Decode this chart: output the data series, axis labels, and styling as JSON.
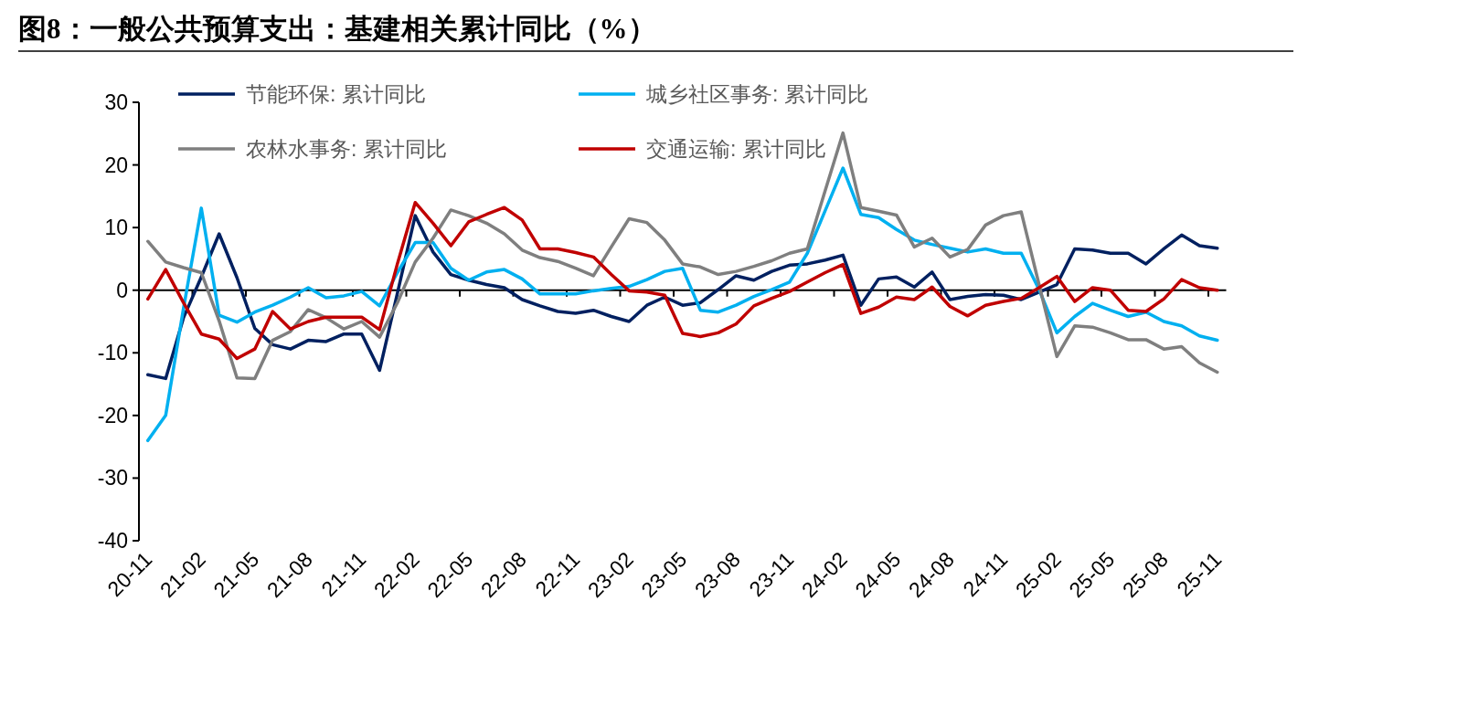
{
  "chart_data": {
    "type": "line",
    "title": "图8：一般公共预算支出：基建相关累计同比（%）",
    "categories": [
      "20-11",
      null,
      null,
      "21-02",
      null,
      null,
      "21-05",
      null,
      null,
      "21-08",
      null,
      null,
      "21-11",
      null,
      null,
      "22-02",
      null,
      null,
      "22-05",
      null,
      null,
      "22-08",
      null,
      null,
      "22-11",
      null,
      null,
      "23-02",
      null,
      null,
      "23-05",
      null,
      null,
      "23-08",
      null,
      null,
      "23-11",
      null,
      null,
      "24-02",
      null,
      null,
      "24-05",
      null,
      null,
      "24-08",
      null,
      null,
      "24-11",
      null,
      null,
      "25-02",
      null,
      null,
      "25-05",
      null,
      null,
      "25-08",
      null,
      null,
      "25-11"
    ],
    "series": [
      {
        "name": "节能环保: 累计同比",
        "color": "#002060",
        "values": [
          -13.5,
          -14.1,
          -4.4,
          2.1,
          9.0,
          2.0,
          -6.1,
          -8.7,
          -9.4,
          -8.0,
          -8.2,
          -7.0,
          -7.0,
          -12.8,
          -0.5,
          11.9,
          6.1,
          2.5,
          1.6,
          0.9,
          0.4,
          -1.5,
          -2.5,
          -3.4,
          -3.7,
          -3.2,
          -4.2,
          -5.0,
          -2.4,
          -1.1,
          -2.4,
          -2.0,
          0.1,
          2.3,
          1.6,
          3.0,
          4.0,
          4.2,
          4.8,
          5.6,
          -2.4,
          1.8,
          2.1,
          0.5,
          2.9,
          -1.5,
          -1.0,
          -0.7,
          -0.8,
          -1.5,
          -0.3,
          0.9,
          6.6,
          6.4,
          5.9,
          5.9,
          4.2,
          6.6,
          8.8,
          7.1,
          6.7
        ]
      },
      {
        "name": "城乡社区事务: 累计同比",
        "color": "#00b0f0",
        "values": [
          -24.0,
          -20.0,
          -2.9,
          13.1,
          -4.0,
          -5.1,
          -3.5,
          -2.4,
          -1.1,
          0.4,
          -1.2,
          -0.9,
          -0.2,
          -2.5,
          2.8,
          7.6,
          7.6,
          3.5,
          1.6,
          2.9,
          3.3,
          1.8,
          -0.6,
          -0.6,
          -0.6,
          -0.1,
          0.3,
          0.6,
          1.7,
          3.0,
          3.5,
          -3.2,
          -3.5,
          -2.4,
          -1.0,
          0.1,
          1.3,
          5.9,
          12.7,
          19.5,
          12.1,
          11.6,
          9.7,
          8.0,
          7.3,
          6.7,
          6.1,
          6.6,
          5.9,
          5.9,
          0.1,
          -6.8,
          -4.2,
          -2.1,
          -3.2,
          -4.2,
          -3.5,
          -5.0,
          -5.7,
          -7.3,
          -8.0
        ]
      },
      {
        "name": "农林水事务: 累计同比",
        "color": "#7f7f7f",
        "values": [
          7.8,
          4.5,
          3.6,
          2.8,
          -4.9,
          -14.0,
          -14.1,
          -8.0,
          -6.6,
          -3.1,
          -4.4,
          -6.2,
          -5.0,
          -7.5,
          -2.0,
          4.5,
          8.3,
          12.8,
          11.9,
          10.7,
          9.0,
          6.4,
          5.2,
          4.6,
          3.5,
          2.3,
          6.9,
          11.4,
          10.8,
          8.0,
          4.2,
          3.7,
          2.5,
          3.0,
          3.8,
          4.7,
          5.9,
          6.6,
          15.9,
          25.1,
          13.2,
          12.6,
          12.0,
          6.9,
          8.3,
          5.3,
          6.5,
          10.4,
          11.9,
          12.5,
          0.9,
          -10.6,
          -5.7,
          -5.9,
          -6.8,
          -7.9,
          -7.9,
          -9.4,
          -9.0,
          -11.6,
          -13.1
        ]
      },
      {
        "name": "交通运输: 累计同比",
        "color": "#c00000",
        "values": [
          -1.4,
          3.3,
          -2.0,
          -7.0,
          -7.8,
          -10.9,
          -9.4,
          -3.4,
          -6.2,
          -5.0,
          -4.3,
          -4.3,
          -4.3,
          -6.3,
          4.2,
          14.0,
          10.7,
          7.1,
          10.9,
          12.1,
          13.2,
          11.2,
          6.6,
          6.6,
          6.0,
          5.3,
          2.5,
          -0.1,
          -0.3,
          -0.8,
          -6.9,
          -7.4,
          -6.8,
          -5.4,
          -2.5,
          -1.3,
          -0.2,
          1.3,
          2.8,
          4.1,
          -3.7,
          -2.7,
          -1.1,
          -1.5,
          0.5,
          -2.6,
          -4.1,
          -2.4,
          -1.8,
          -1.3,
          0.4,
          2.2,
          -1.8,
          0.4,
          0.0,
          -3.2,
          -3.4,
          -1.4,
          1.7,
          0.4,
          0.0
        ]
      }
    ],
    "ylim": [
      -40,
      30
    ],
    "yticks": [
      -40,
      -30,
      -20,
      -10,
      0,
      10,
      20,
      30
    ],
    "legend": "top"
  }
}
